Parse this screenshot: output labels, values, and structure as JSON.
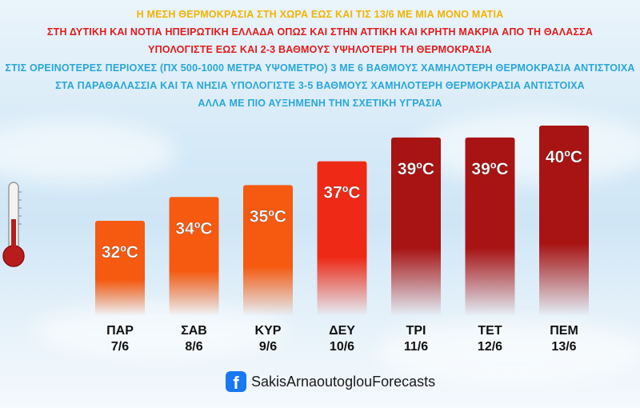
{
  "headlines": [
    {
      "text": "Η ΜΕΣΗ ΘΕΡΜΟΚΡΑΣΙΑ ΣΤΗ ΧΩΡΑ ΕΩΣ ΚΑΙ ΤΙΣ 13/6 ΜΕ ΜΙΑ ΜΟΝΟ ΜΑΤΙΑ",
      "color": "#f0b400"
    },
    {
      "text": "ΣΤΗ ΔΥΤΙΚΗ ΚΑΙ ΝΟΤΙΑ ΗΠΕΙΡΩΤΙΚΗ ΕΛΛΑΔΑ ΟΠΩΣ ΚΑΙ ΣΤΗΝ ΑΤΤΙΚΗ ΚΑΙ ΚΡΗΤΗ ΜΑΚΡΙΑ ΑΠΟ ΤΗ ΘΑΛΑΣΣΑ",
      "color": "#e01b1b"
    },
    {
      "text": "ΥΠΟΛΟΓΙΣΤΕ ΕΩΣ ΚΑΙ 2-3 ΒΑΘΜΟΥΣ ΥΨΗΛΟΤΕΡΗ ΤΗ ΘΕΡΜΟΚΡΑΣΙΑ",
      "color": "#e01b1b"
    },
    {
      "text": "ΣΤΙΣ ΟΡΕΙΝΟΤΕΡΕΣ ΠΕΡΙΟΧΕΣ (ΠΧ 500-1000 ΜΕΤΡΑ ΥΨΟΜΕΤΡΟ) 3 ΜΕ 6 ΒΑΘΜΟΥΣ ΧΑΜΗΛΟΤΕΡΗ ΘΕΡΜΟΚΡΑΣΙΑ ΑΝΤΙΣΤΟΙΧΑ",
      "color": "#2aa6d8"
    },
    {
      "text": "ΣΤΑ ΠΑΡΑΘΑΛΑΣΣΙΑ ΚΑΙ ΤΑ ΝΗΣΙΑ ΥΠΟΛΟΓΙΣΤΕ 3-5 ΒΑΘΜΟΥΣ ΧΑΜΗΛΟΤΕΡΗ ΘΕΡΜΟΚΡΑΣΙΑ ΑΝΤΙΣΤΟΙΧΑ",
      "color": "#2aa6d8"
    },
    {
      "text": "ΑΛΛΑ ΜΕ ΠΙΟ ΑΥΞΗΜΕΝΗ ΤΗΝ ΣΧΕΤΙΚΗ ΥΓΡΑΣΙΑ",
      "color": "#2aa6d8"
    }
  ],
  "chart_data": {
    "type": "bar",
    "categories": [
      "ΠΑΡ 7/6",
      "ΣΑΒ 8/6",
      "ΚΥΡ 9/6",
      "ΔΕΥ 10/6",
      "ΤΡΙ 11/6",
      "ΤΕΤ 12/6",
      "ΠΕΜ 13/6"
    ],
    "days": [
      "ΠΑΡ",
      "ΣΑΒ",
      "ΚΥΡ",
      "ΔΕΥ",
      "ΤΡΙ",
      "ΤΕΤ",
      "ΠΕΜ"
    ],
    "dates": [
      "7/6",
      "8/6",
      "9/6",
      "10/6",
      "11/6",
      "12/6",
      "13/6"
    ],
    "values": [
      32,
      34,
      35,
      37,
      39,
      39,
      40
    ],
    "value_labels": [
      "32ºC",
      "34ºC",
      "35ºC",
      "37ºC",
      "39ºC",
      "39ºC",
      "40ºC"
    ],
    "unit": "ºC",
    "ylim": [
      24,
      40
    ],
    "bar_colors": [
      "#f55a10",
      "#f55a10",
      "#f55a10",
      "#ee2a16",
      "#a81414",
      "#a81414",
      "#a81414"
    ],
    "grid": false,
    "title": "",
    "xlabel": "",
    "ylabel": ""
  },
  "footer": {
    "facebook_glyph": "f",
    "page_name": "SakisArnaoutoglouForecasts"
  },
  "icons": {
    "facebook": "facebook-icon",
    "thermometer": "thermometer-icon"
  }
}
